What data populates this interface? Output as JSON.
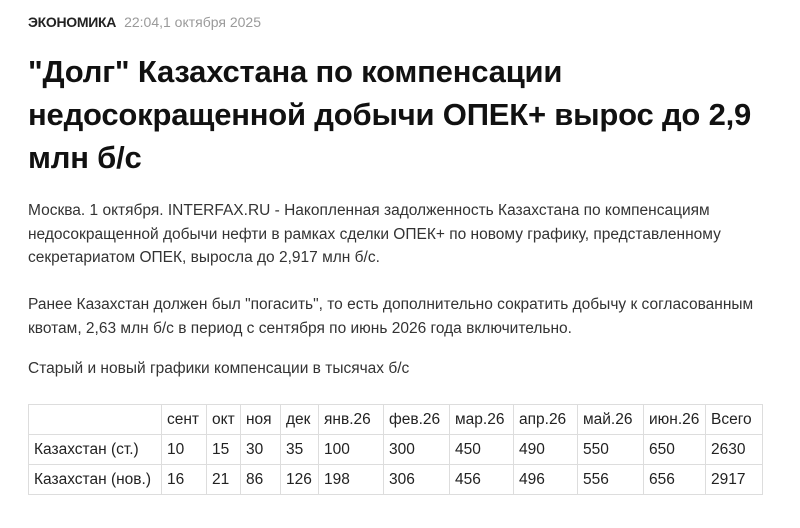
{
  "rubric": "ЭКОНОМИКА",
  "datetime": "22:04,1 октября 2025",
  "title": "\"Долг\" Казахстана по компенсации недосокращенной добычи ОПЕК+ вырос до 2,9 млн б/с",
  "paragraphs": [
    "Москва. 1 октября. INTERFAX.RU - Накопленная задолженность Казахстана по компенсациям недосокращенной добычи нефти в рамках сделки ОПЕК+ по новому графику, представленному секретариатом ОПЕК, выросла до 2,917 млн б/с.",
    "Ранее Казахстан должен был \"погасить\", то есть дополнительно сократить добычу к согласованным квотам, 2,63 млн б/с в период с сентября по июнь 2026 года включительно.",
    "Старый и новый графики компенсации в тысячах б/с"
  ],
  "table": {
    "header": [
      "",
      "сент",
      "окт",
      "ноя",
      "дек",
      "янв.26",
      "фев.26",
      "мар.26",
      "апр.26",
      "май.26",
      "июн.26",
      "Всего"
    ],
    "rows": [
      [
        "Казахстан (ст.)",
        "10",
        "15",
        "30",
        "35",
        "100",
        "300",
        "450",
        "490",
        "550",
        "650",
        "2630"
      ],
      [
        "Казахстан (нов.)",
        "16",
        "21",
        "86",
        "126",
        "198",
        "306",
        "456",
        "496",
        "556",
        "656",
        "2917"
      ]
    ]
  }
}
